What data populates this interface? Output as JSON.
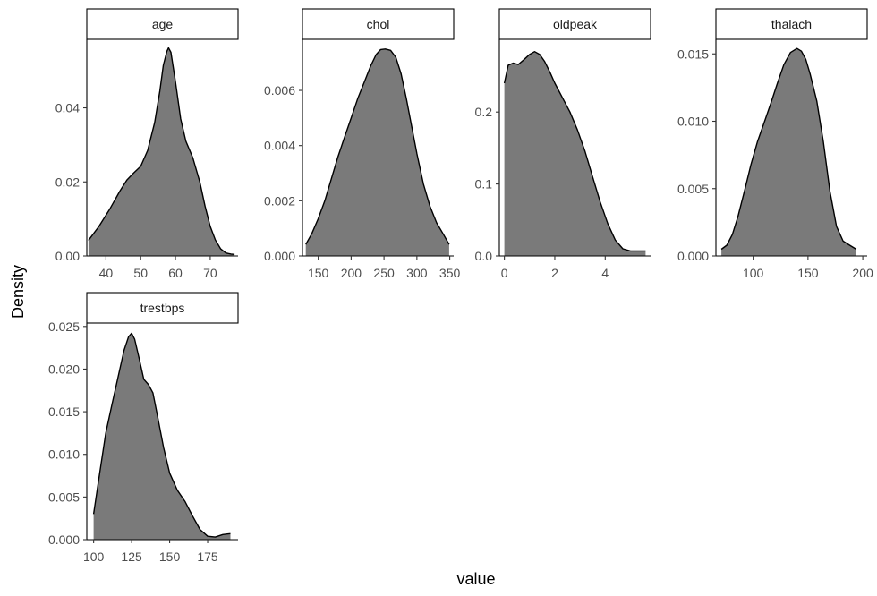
{
  "chart_data": {
    "type": "area",
    "xlabel": "value",
    "ylabel": "Density",
    "fill_color": "#7a7a7a",
    "line_color": "#000000",
    "grid": false,
    "legend": "none",
    "facets": [
      {
        "name": "age",
        "xlim": [
          34.5,
          78
        ],
        "ylim": [
          0,
          0.0585
        ],
        "x_ticks": [
          40,
          50,
          60,
          70
        ],
        "x_tick_labels": [
          "40",
          "50",
          "60",
          "70"
        ],
        "y_ticks": [
          0,
          0.02,
          0.04
        ],
        "y_tick_labels": [
          "0.00",
          "0.02",
          "0.04"
        ],
        "x": [
          35,
          38,
          41,
          44,
          46,
          48,
          50,
          52,
          54,
          55.5,
          56.5,
          57.5,
          58,
          58.7,
          60,
          61.5,
          63,
          65,
          67,
          68.5,
          70,
          71.5,
          73,
          74.5,
          76,
          77
        ],
        "y": [
          0.0042,
          0.008,
          0.0125,
          0.0175,
          0.0205,
          0.0224,
          0.0242,
          0.0285,
          0.036,
          0.0445,
          0.0515,
          0.0552,
          0.0562,
          0.055,
          0.047,
          0.037,
          0.031,
          0.0265,
          0.02,
          0.0135,
          0.008,
          0.0043,
          0.0019,
          0.0008,
          0.0005,
          0.0004
        ]
      },
      {
        "name": "chol",
        "xlim": [
          126,
          356
        ],
        "ylim": [
          0,
          0.00785
        ],
        "x_ticks": [
          150,
          200,
          250,
          300,
          350
        ],
        "x_tick_labels": [
          "150",
          "200",
          "250",
          "300",
          "350"
        ],
        "y_ticks": [
          0,
          0.002,
          0.004,
          0.006
        ],
        "y_tick_labels": [
          "0.000",
          "0.002",
          "0.004",
          "0.006"
        ],
        "x": [
          131,
          140,
          150,
          160,
          170,
          180,
          190,
          200,
          210,
          220,
          230,
          238,
          245,
          252,
          260,
          268,
          276,
          284,
          292,
          300,
          310,
          320,
          330,
          340,
          349
        ],
        "y": [
          0.00042,
          0.0008,
          0.00135,
          0.002,
          0.0028,
          0.0036,
          0.0043,
          0.005,
          0.0057,
          0.0063,
          0.0069,
          0.0073,
          0.00748,
          0.0075,
          0.00745,
          0.0072,
          0.0066,
          0.0057,
          0.0047,
          0.0037,
          0.0026,
          0.0018,
          0.0012,
          0.0008,
          0.00042
        ]
      },
      {
        "name": "oldpeak",
        "xlim": [
          -0.2,
          5.8
        ],
        "ylim": [
          0,
          0.301
        ],
        "x_ticks": [
          0,
          2,
          4
        ],
        "x_tick_labels": [
          "0",
          "2",
          "4"
        ],
        "y_ticks": [
          0,
          0.1,
          0.2
        ],
        "y_tick_labels": [
          "0.0",
          "0.1",
          "0.2"
        ],
        "x": [
          0,
          0.15,
          0.35,
          0.55,
          0.75,
          1.0,
          1.2,
          1.4,
          1.6,
          1.8,
          2.0,
          2.3,
          2.6,
          2.9,
          3.2,
          3.5,
          3.8,
          4.1,
          4.4,
          4.7,
          5.0,
          5.3,
          5.6
        ],
        "y": [
          0.24,
          0.265,
          0.268,
          0.266,
          0.272,
          0.28,
          0.284,
          0.28,
          0.27,
          0.256,
          0.24,
          0.22,
          0.2,
          0.175,
          0.145,
          0.11,
          0.075,
          0.045,
          0.022,
          0.01,
          0.007,
          0.007,
          0.007
        ]
      },
      {
        "name": "thalach",
        "xlim": [
          66,
          204
        ],
        "ylim": [
          0,
          0.01608
        ],
        "x_ticks": [
          100,
          150,
          200
        ],
        "x_tick_labels": [
          "100",
          "150",
          "200"
        ],
        "y_ticks": [
          0,
          0.005,
          0.01,
          0.015
        ],
        "y_tick_labels": [
          "0.000",
          "0.005",
          "0.010",
          "0.015"
        ],
        "x": [
          71,
          76,
          81,
          86,
          92,
          98,
          104,
          110,
          116,
          122,
          128,
          134,
          140,
          144,
          148,
          152,
          158,
          164,
          170,
          176,
          182,
          188,
          194
        ],
        "y": [
          0.0005,
          0.0008,
          0.0016,
          0.0029,
          0.0048,
          0.0068,
          0.0085,
          0.0099,
          0.0113,
          0.0128,
          0.0142,
          0.0151,
          0.0154,
          0.0152,
          0.0146,
          0.0135,
          0.0115,
          0.0085,
          0.0048,
          0.0022,
          0.0011,
          0.0008,
          0.0005
        ]
      },
      {
        "name": "trestbps",
        "xlim": [
          95.5,
          195
        ],
        "ylim": [
          0,
          0.0254
        ],
        "x_ticks": [
          100,
          125,
          150,
          175
        ],
        "x_tick_labels": [
          "100",
          "125",
          "150",
          "175"
        ],
        "y_ticks": [
          0,
          0.005,
          0.01,
          0.015,
          0.02,
          0.025
        ],
        "y_tick_labels": [
          "0.000",
          "0.005",
          "0.010",
          "0.015",
          "0.020",
          "0.025"
        ],
        "x": [
          100,
          104,
          108,
          112,
          116,
          120,
          123,
          125,
          127,
          130,
          133,
          136,
          139,
          142,
          146,
          150,
          155,
          160,
          165,
          170,
          175,
          180,
          185,
          190
        ],
        "y": [
          0.003,
          0.0078,
          0.0125,
          0.0158,
          0.019,
          0.0222,
          0.0238,
          0.0242,
          0.0235,
          0.0212,
          0.0188,
          0.0182,
          0.0172,
          0.0145,
          0.0108,
          0.0078,
          0.0058,
          0.0045,
          0.0028,
          0.0012,
          0.0004,
          0.0003,
          0.0006,
          0.0007
        ]
      }
    ]
  }
}
